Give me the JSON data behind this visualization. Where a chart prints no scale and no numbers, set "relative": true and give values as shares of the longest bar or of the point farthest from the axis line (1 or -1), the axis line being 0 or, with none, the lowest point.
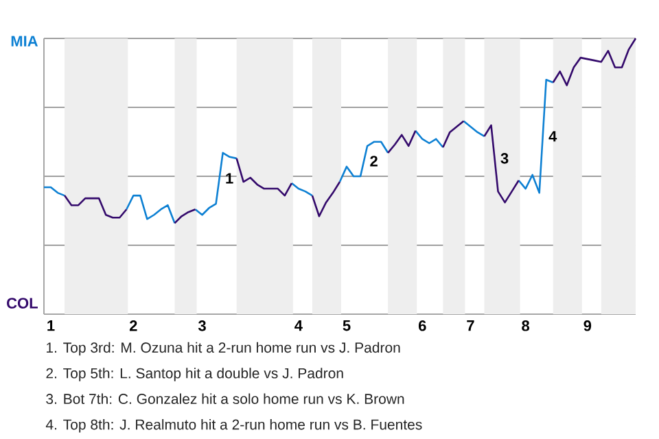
{
  "chart_data": {
    "type": "line",
    "relative": true,
    "categories": [
      null,
      "1",
      null,
      null,
      null,
      null,
      null,
      null,
      null,
      null,
      null,
      null,
      null,
      "2",
      null,
      null,
      null,
      null,
      null,
      null,
      null,
      null,
      null,
      "3",
      null,
      null,
      null,
      null,
      null,
      null,
      null,
      null,
      null,
      null,
      null,
      null,
      null,
      "4",
      null,
      null,
      null,
      null,
      null,
      null,
      "5",
      null,
      null,
      null,
      null,
      null,
      null,
      null,
      null,
      null,
      null,
      "6",
      null,
      null,
      null,
      null,
      null,
      null,
      "7",
      null,
      null,
      null,
      null,
      null,
      null,
      null,
      "8",
      null,
      null,
      null,
      null,
      null,
      null,
      null,
      null,
      "9",
      null,
      null,
      null,
      null,
      null,
      null,
      null
    ],
    "grid": "y",
    "marker": "none",
    "line_style": "solid",
    "series": [
      {
        "color": "#0d80d3",
        "values": [
          0.46,
          0.46,
          0.44,
          0.43,
          null,
          null,
          null,
          null,
          null,
          null,
          null,
          null,
          0.38,
          0.43,
          0.43,
          0.345,
          0.36,
          0.38,
          0.395,
          0.33,
          null,
          null,
          0.38,
          0.36,
          0.385,
          0.4,
          0.585,
          0.57,
          0.565,
          null,
          null,
          null,
          null,
          null,
          null,
          null,
          0.475,
          0.455,
          0.445,
          0.43,
          null,
          null,
          null,
          0.48,
          0.535,
          0.5,
          0.5,
          0.61,
          0.625,
          0.625,
          0.585,
          null,
          null,
          null,
          0.665,
          0.635,
          0.62,
          0.635,
          0.605,
          null,
          null,
          0.7,
          0.68,
          0.66,
          0.645,
          null,
          null,
          null,
          null,
          0.485,
          0.455,
          0.505,
          0.44,
          0.85,
          0.84,
          null,
          null,
          null,
          null,
          null,
          null,
          null,
          null,
          null,
          null,
          null,
          null
        ]
      },
      {
        "color": "#33096b",
        "values": [
          null,
          null,
          null,
          0.43,
          0.395,
          0.395,
          0.42,
          0.42,
          0.42,
          0.36,
          0.35,
          0.35,
          0.38,
          null,
          null,
          null,
          null,
          null,
          null,
          0.33,
          0.355,
          0.37,
          0.38,
          null,
          null,
          null,
          null,
          null,
          0.565,
          0.48,
          0.495,
          0.47,
          0.455,
          0.455,
          0.455,
          0.43,
          0.475,
          null,
          null,
          0.43,
          0.355,
          0.405,
          0.44,
          0.48,
          null,
          null,
          null,
          null,
          null,
          null,
          0.585,
          0.615,
          0.65,
          0.61,
          0.665,
          null,
          null,
          null,
          0.605,
          0.66,
          0.68,
          0.7,
          null,
          null,
          0.645,
          0.685,
          0.445,
          0.405,
          0.445,
          0.485,
          null,
          null,
          null,
          null,
          0.84,
          0.88,
          0.83,
          0.895,
          0.93,
          0.925,
          0.92,
          0.915,
          0.955,
          0.895,
          0.895,
          0.96,
          1.0
        ]
      }
    ],
    "annotations": [
      "MIA",
      "COL",
      "1",
      "2",
      "3",
      "4",
      "1. Top 3rd: M. Ozuna hit a 2-run home run vs J. Padron",
      "2. Top 5th: L. Santop hit a double vs J. Padron",
      "3. Bot 7th: C. Gonzalez hit a solo home run vs K. Brown",
      "4. Top 8th: J. Realmuto hit a 2-run home run vs B. Fuentes"
    ]
  }
}
